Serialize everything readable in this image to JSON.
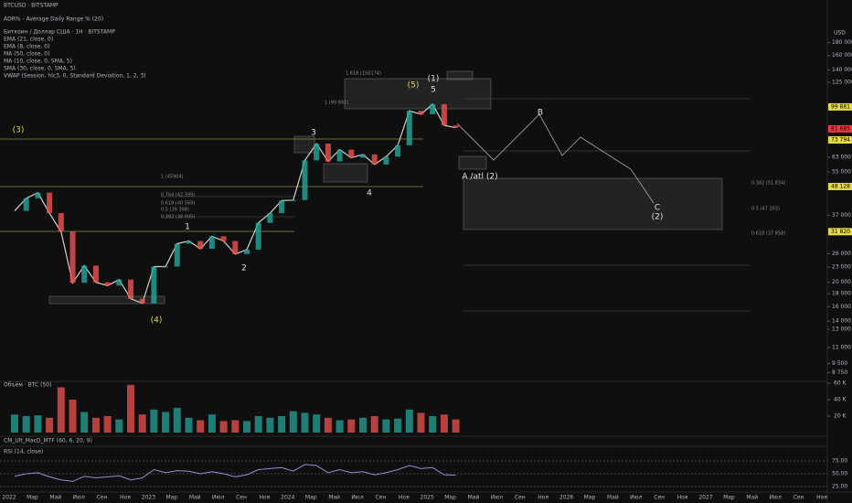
{
  "header": {
    "symbol": "BTCUSD · BITSTAMP",
    "adr": "ADR% - Average Daily Range % (20)"
  },
  "legend": {
    "title": "Биткоин / Доллар США · 1Н · BITSTAMP",
    "indicators": [
      "EMA (21, close, 0)",
      "EMA (8, close, 0)",
      "MA (50, close, 0)",
      "MA (10, close, 0, SMA, 5)",
      "SMA (30, close, 0, SMA, 5)",
      "VWAP (Session, hlc3, 0, Standard Deviation, 1, 2, 3)"
    ]
  },
  "price_axis": {
    "currency": "USD",
    "log_scale": true,
    "ylim": [
      8200,
      207000
    ],
    "ticks": [
      {
        "value": 180000,
        "label": "180 000"
      },
      {
        "value": 160000,
        "label": "160 000"
      },
      {
        "value": 140000,
        "label": "140 000"
      },
      {
        "value": 125000,
        "label": "125 000"
      },
      {
        "value": 63000,
        "label": "63 000"
      },
      {
        "value": 55000,
        "label": "55 000"
      },
      {
        "value": 37000,
        "label": "37 000"
      },
      {
        "value": 26000,
        "label": "26 000"
      },
      {
        "value": 23000,
        "label": "23 000"
      },
      {
        "value": 20000,
        "label": "20 000"
      },
      {
        "value": 18000,
        "label": "18 000"
      },
      {
        "value": 16000,
        "label": "16 000"
      },
      {
        "value": 14000,
        "label": "14 000"
      },
      {
        "value": 13000,
        "label": "13 000"
      },
      {
        "value": 11000,
        "label": "11 000"
      },
      {
        "value": 9500,
        "label": "9 500"
      },
      {
        "value": 8750,
        "label": "8 750"
      }
    ],
    "markers": [
      {
        "value": 99881,
        "label": "99 881",
        "color": "#e3d94a"
      },
      {
        "value": 81685,
        "label": "81 685",
        "color": "#f23645"
      },
      {
        "value": 73794,
        "label": "73 794",
        "color": "#e3d94a"
      },
      {
        "value": 48128,
        "label": "48 128",
        "color": "#e3d94a"
      },
      {
        "value": 31820,
        "label": "31 820",
        "color": "#e3d94a"
      }
    ]
  },
  "price": {
    "color": "#d0d0d0",
    "months": [
      "2022-01",
      "2022-02",
      "2022-03",
      "2022-04",
      "2022-05",
      "2022-06",
      "2022-07",
      "2022-08",
      "2022-09",
      "2022-10",
      "2022-11",
      "2022-12",
      "2023-01",
      "2023-02",
      "2023-03",
      "2023-04",
      "2023-05",
      "2023-06",
      "2023-07",
      "2023-08",
      "2023-09",
      "2023-10",
      "2023-11",
      "2023-12",
      "2024-01",
      "2024-02",
      "2024-03",
      "2024-04",
      "2024-05",
      "2024-06",
      "2024-07",
      "2024-08",
      "2024-09",
      "2024-10",
      "2024-11",
      "2024-12",
      "2025-01",
      "2025-02",
      "2025-03"
    ],
    "close": [
      38500,
      43200,
      45500,
      37700,
      31800,
      19900,
      23300,
      20000,
      19400,
      20500,
      17200,
      16500,
      23100,
      23100,
      28500,
      29200,
      27200,
      30500,
      29200,
      25900,
      27000,
      34500,
      37700,
      42300,
      42500,
      61200,
      71300,
      60600,
      67500,
      62700,
      64600,
      58900,
      63300,
      70200,
      96400,
      93400,
      102400,
      84300,
      82500
    ]
  },
  "waves": [
    "(3)",
    "1",
    "2",
    "(4)",
    "3",
    "4",
    "(5)",
    "(1)",
    "5",
    "B",
    "A /atl (2)",
    "C",
    "(2)"
  ],
  "fib_labels": [
    "1.618 (150174)",
    "1 (99 881)",
    "1 (45904)",
    "0.764 (42 399)",
    "0.618 (40 569)",
    "0.5 (39 398)",
    "0.382 (38 005)",
    "0.382 (51 834)",
    "0.5 (47 163)",
    "0.618 (37 858)"
  ],
  "time_axis": [
    "2022",
    "Мар",
    "Май",
    "Июл",
    "Сен",
    "Ноя",
    "2023",
    "Мар",
    "Май",
    "Июл",
    "Сен",
    "Ноя",
    "2024",
    "Мар",
    "Май",
    "Июл",
    "Сен",
    "Ноя",
    "2025",
    "Мар",
    "Май",
    "Июл",
    "Сен",
    "Ноя",
    "2026",
    "Мар",
    "Май",
    "Июл",
    "Сен",
    "Ноя",
    "2027",
    "Мар",
    "Май",
    "Июл",
    "Сен",
    "Ноя"
  ],
  "volume": {
    "title": "Объём · BTC (50)",
    "ticks": [
      {
        "value": 60000,
        "label": "60 K"
      },
      {
        "value": 40000,
        "label": "40 K"
      },
      {
        "value": 20000,
        "label": "20 K"
      }
    ],
    "values": [
      22000,
      20000,
      21000,
      18000,
      55000,
      40000,
      25000,
      18000,
      20000,
      16000,
      58000,
      22000,
      28000,
      25000,
      30000,
      18000,
      15000,
      22000,
      14000,
      15000,
      14000,
      20000,
      18000,
      20000,
      26000,
      24000,
      22000,
      18000,
      15000,
      16000,
      18000,
      20000,
      16000,
      17000,
      28000,
      24000,
      20000,
      22000,
      16000
    ]
  },
  "macd": {
    "title": "CM_Ult_MacD_MTF (60, 6, 20, 9)"
  },
  "rsi": {
    "title": "RSI (14, close)",
    "color": "#9c8ad4",
    "ticks": [
      {
        "value": 75,
        "label": "75.00"
      },
      {
        "value": 50,
        "label": "50.00"
      },
      {
        "value": 25,
        "label": "25.00"
      }
    ],
    "values": [
      45,
      50,
      52,
      44,
      38,
      35,
      45,
      42,
      44,
      46,
      38,
      42,
      58,
      52,
      56,
      55,
      50,
      54,
      50,
      44,
      48,
      58,
      60,
      62,
      55,
      68,
      66,
      52,
      58,
      52,
      54,
      48,
      52,
      58,
      66,
      60,
      62,
      48,
      47
    ]
  }
}
